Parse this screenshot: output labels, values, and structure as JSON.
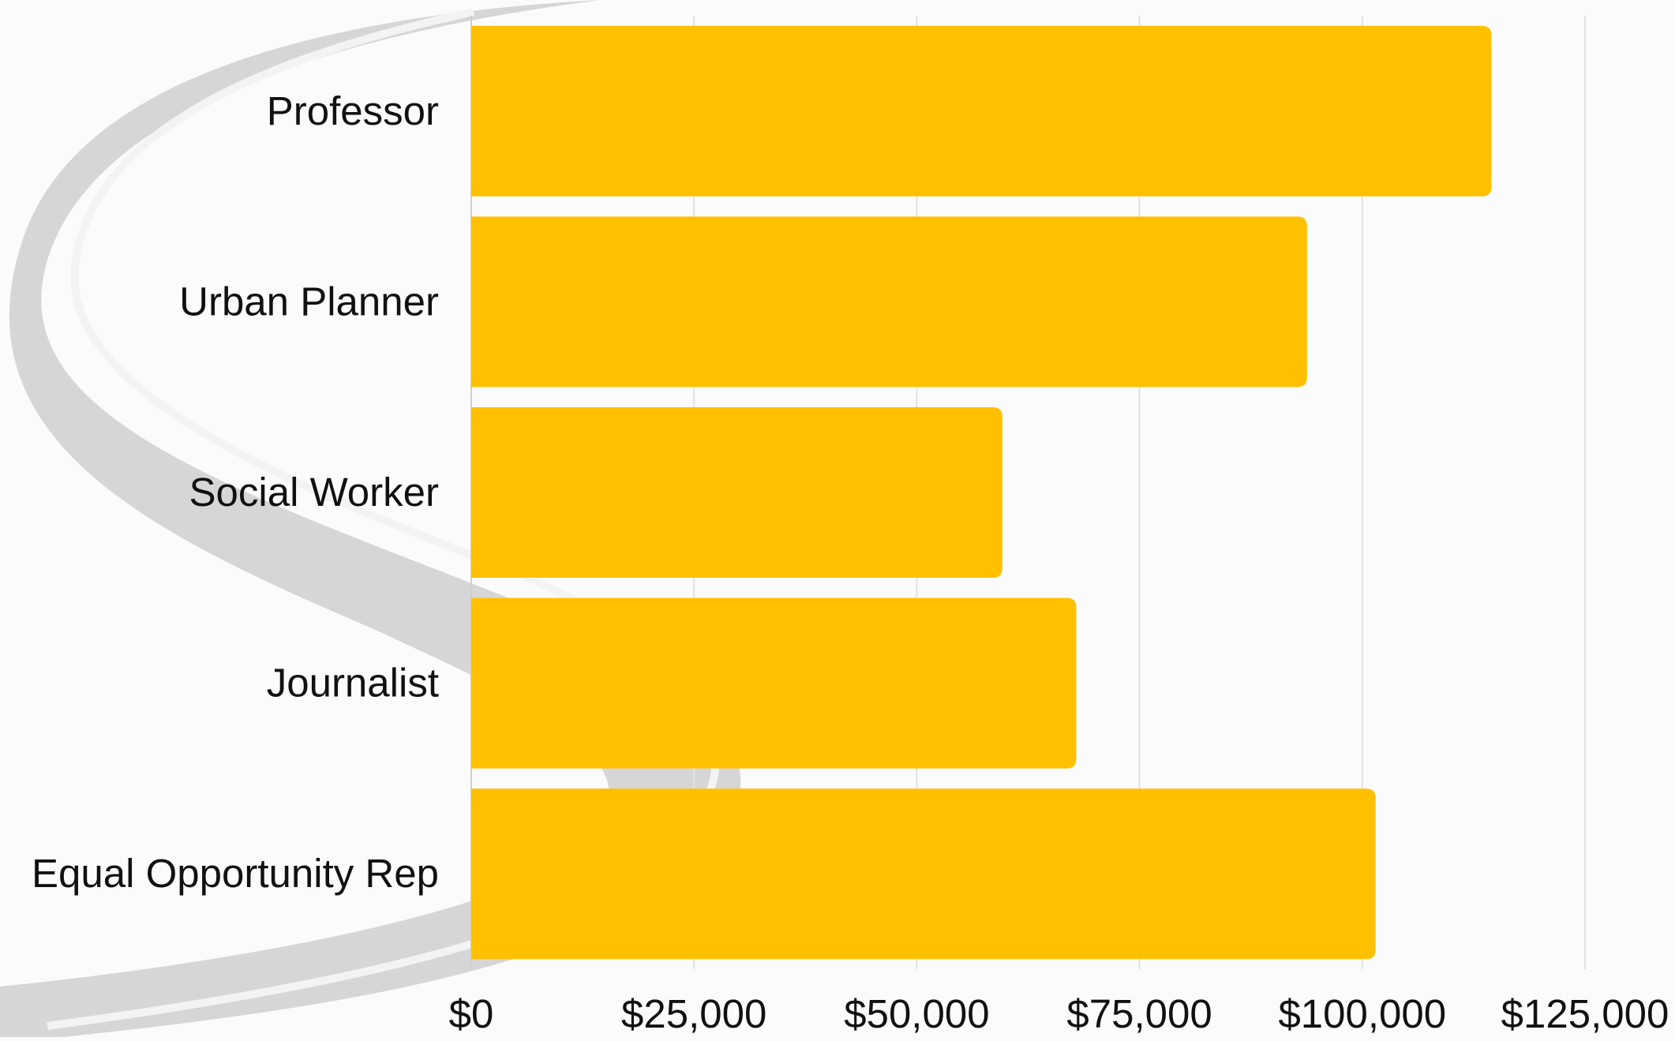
{
  "chart_data": {
    "type": "bar",
    "orientation": "horizontal",
    "categories": [
      "Professor",
      "Urban Planner",
      "Social Worker",
      "Journalist",
      "Equal Opportunity Rep"
    ],
    "values": [
      114500,
      93800,
      59600,
      67900,
      101500
    ],
    "x_ticks": [
      0,
      25000,
      50000,
      75000,
      100000,
      125000
    ],
    "x_tick_labels": [
      "$0",
      "$25,000",
      "$50,000",
      "$75,000",
      "$100,000",
      "$125,000"
    ],
    "xlim": [
      0,
      125000
    ],
    "grid": "vertical",
    "title": "",
    "xlabel": "",
    "ylabel": "",
    "colors": {
      "bar": "#FFC000",
      "grid": "#e2e2e2",
      "text": "#111111",
      "background": "#fbfbfb",
      "watermark": "#d6d6d6"
    }
  },
  "watermark": {
    "description_icon": "winding-road-icon"
  }
}
